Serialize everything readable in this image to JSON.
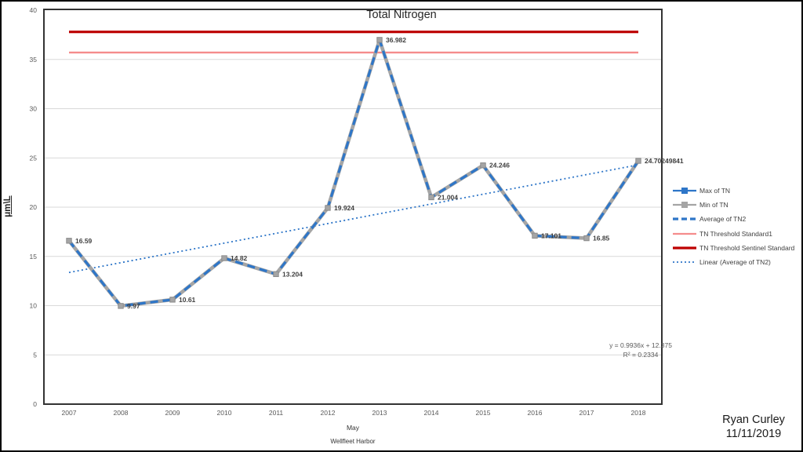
{
  "chart_data": {
    "type": "line",
    "title": "Total Nitrogen",
    "ylabel": "μm\\L",
    "xlabel": "May",
    "xlabel_sub": "Wellfleet Harbor",
    "categories": [
      "2007",
      "2008",
      "2009",
      "2010",
      "2011",
      "2012",
      "2013",
      "2014",
      "2015",
      "2016",
      "2017",
      "2018"
    ],
    "y_axis": {
      "min": 0,
      "max": 40,
      "step": 5,
      "grid": true
    },
    "values": [
      16.59,
      9.97,
      10.61,
      14.82,
      13.204,
      19.924,
      36.982,
      21.004,
      24.246,
      17.101,
      16.85,
      24.70249841
    ],
    "data_labels": [
      "16.59",
      "9.97",
      "10.61",
      "14.82",
      "13.204",
      "19.924",
      "36.982",
      "21.004",
      "24.246",
      "17.101",
      "16.85",
      "24.70249841"
    ],
    "series": [
      {
        "name": "Max of TN",
        "style": "solid-marker",
        "color": "#2E76C8",
        "values_same_as": "values"
      },
      {
        "name": "Min of TN",
        "style": "solid-marker",
        "color": "#A5A5A5",
        "values_same_as": "values"
      },
      {
        "name": "Average of TN2",
        "style": "dashed",
        "color": "#2E76C8",
        "values_same_as": "values"
      }
    ],
    "thresholds": [
      {
        "name": "TN Threshold Standard1",
        "value": 35.7,
        "color": "#F58C8C",
        "width": 2.4
      },
      {
        "name": "TN Threshold Sentinel Standard",
        "value": 37.8,
        "color": "#BE0000",
        "width": 3.2
      }
    ],
    "trendline": {
      "name": "Linear (Average of TN2)",
      "slope": 0.9936,
      "intercept": 12.375,
      "color": "#2E76C8",
      "equation": "y = 0.9936x + 12.375",
      "r_squared": "R² = 0.2334"
    },
    "legend": [
      {
        "label": "Max of TN",
        "color": "#2E76C8",
        "swatch": "solid-marker"
      },
      {
        "label": "Min of TN",
        "color": "#A5A5A5",
        "swatch": "solid-marker"
      },
      {
        "label": "Average of TN2",
        "color": "#2E76C8",
        "swatch": "dashed"
      },
      {
        "label": "TN Threshold Standard1",
        "color": "#F58C8C",
        "swatch": "solid-thin"
      },
      {
        "label": "TN Threshold Sentinel Standard",
        "color": "#BE0000",
        "swatch": "solid-thick"
      },
      {
        "label": "Linear (Average of TN2)",
        "color": "#2E76C8",
        "swatch": "dotted"
      }
    ],
    "colors": {
      "grid": "#D9D9D9",
      "plot_border": "#333333",
      "tick_text": "#595959",
      "data_label_text": "#3F3F3F",
      "marker_fill": "#A5A5A5",
      "marker_stroke": "#8C8C8C"
    },
    "legend_position": "right"
  },
  "author": {
    "name": "Ryan Curley",
    "date": "11/11/2019"
  }
}
